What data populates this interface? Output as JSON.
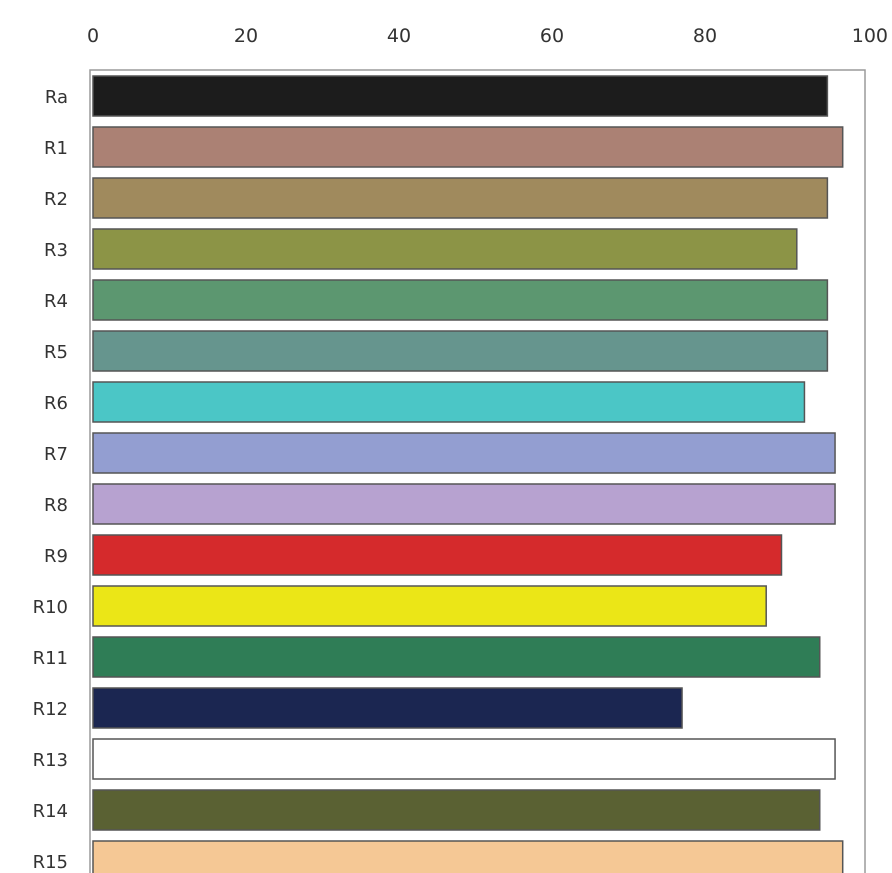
{
  "chart_data": {
    "type": "bar",
    "orientation": "horizontal",
    "title": "",
    "xlabel": "",
    "ylabel": "",
    "xlim": [
      0,
      100
    ],
    "xticks": [
      0,
      20,
      40,
      60,
      80,
      100
    ],
    "x_axis_position": "top",
    "grid": false,
    "legend": "none",
    "categories": [
      "Ra",
      "R1",
      "R2",
      "R3",
      "R4",
      "R5",
      "R6",
      "R7",
      "R8",
      "R9",
      "R10",
      "R11",
      "R12",
      "R13",
      "R14",
      "R15"
    ],
    "values": [
      96,
      98,
      96,
      92,
      96,
      96,
      93,
      97,
      97,
      90,
      88,
      95,
      77,
      97,
      95,
      98
    ],
    "colors": [
      "#1c1c1c",
      "#ab8174",
      "#a08a5d",
      "#8c9446",
      "#5c9770",
      "#66958e",
      "#4bc6c6",
      "#939ed1",
      "#b7a2d0",
      "#d52a2c",
      "#ebe617",
      "#2f7d56",
      "#1b2651",
      "#ffffff",
      "#5a6133",
      "#f5c895"
    ]
  }
}
